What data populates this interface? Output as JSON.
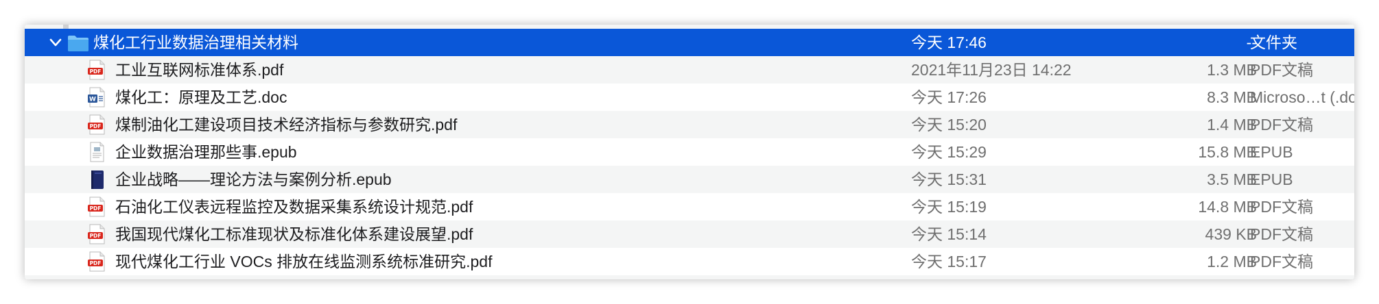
{
  "folder": {
    "name": "煤化工行业数据治理相关材料",
    "date": "今天 17:46",
    "size": "--",
    "kind": "文件夹"
  },
  "files": [
    {
      "name": "工业互联网标准体系.pdf",
      "date": "2021年11月23日 14:22",
      "size": "1.3 MB",
      "kind": "PDF文稿",
      "icon": "pdf-icon"
    },
    {
      "name": "煤化工：原理及工艺.doc",
      "date": "今天 17:26",
      "size": "8.3 MB",
      "kind": "Microso…t (.doc)",
      "icon": "word-doc-icon"
    },
    {
      "name": "煤制油化工建设项目技术经济指标与参数研究.pdf",
      "date": "今天 15:20",
      "size": "1.4 MB",
      "kind": "PDF文稿",
      "icon": "pdf-icon"
    },
    {
      "name": "企业数据治理那些事.epub",
      "date": "今天 15:29",
      "size": "15.8 MB",
      "kind": "EPUB",
      "icon": "epub-document-icon"
    },
    {
      "name": "企业战略——理论方法与案例分析.epub",
      "date": "今天 15:31",
      "size": "3.5 MB",
      "kind": "EPUB",
      "icon": "epub-book-icon"
    },
    {
      "name": "石油化工仪表远程监控及数据采集系统设计规范.pdf",
      "date": "今天 15:19",
      "size": "14.8 MB",
      "kind": "PDF文稿",
      "icon": "pdf-icon"
    },
    {
      "name": "我国现代煤化工标准现状及标准化体系建设展望.pdf",
      "date": "今天 15:14",
      "size": "439 KB",
      "kind": "PDF文稿",
      "icon": "pdf-icon"
    },
    {
      "name": "现代煤化工行业 VOCs 排放在线监测系统标准研究.pdf",
      "date": "今天 15:17",
      "size": "1.2 MB",
      "kind": "PDF文稿",
      "icon": "pdf-icon"
    }
  ],
  "colors": {
    "selection": "#0a57d8",
    "folder": "#4aa8ef",
    "pdf_red": "#d9261c",
    "word_blue": "#2b579a",
    "epub_navy": "#1e2a6b"
  }
}
